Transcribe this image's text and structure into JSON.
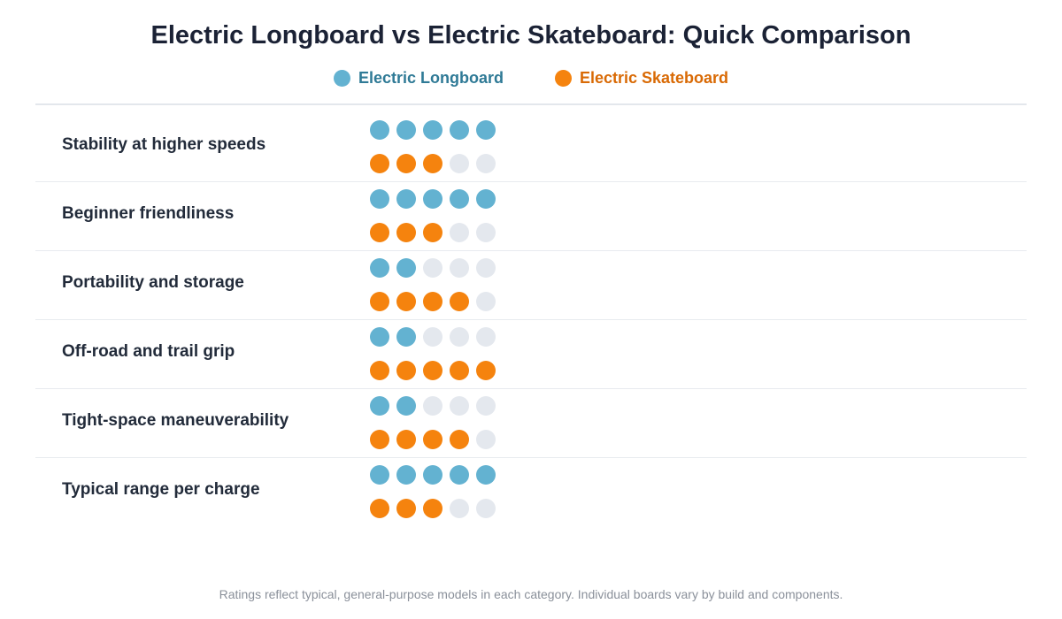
{
  "title": "Electric Longboard vs Electric Skateboard: Quick Comparison",
  "colors": {
    "longboard": "#63b2d1",
    "skateboard": "#f5830e",
    "empty": "#e4e8ee",
    "longboard_text": "#2f7a96",
    "skateboard_text": "#d96a05"
  },
  "legend": {
    "longboard_label": "Electric Longboard",
    "skateboard_label": "Electric Skateboard"
  },
  "chart_data": {
    "type": "dot-rating",
    "max_rating": 5,
    "categories": [
      "Stability at higher speeds",
      "Beginner friendliness",
      "Portability and storage",
      "Off-road and trail grip",
      "Tight-space maneuverability",
      "Typical range per charge"
    ],
    "series": [
      {
        "name": "Electric Longboard",
        "values": [
          5,
          5,
          2,
          2,
          2,
          5
        ]
      },
      {
        "name": "Electric Skateboard",
        "values": [
          3,
          3,
          4,
          5,
          4,
          3
        ]
      }
    ],
    "legend_position": "top-center"
  },
  "footnote": "Ratings reflect typical, general-purpose models in each category. Individual boards vary by build and components."
}
